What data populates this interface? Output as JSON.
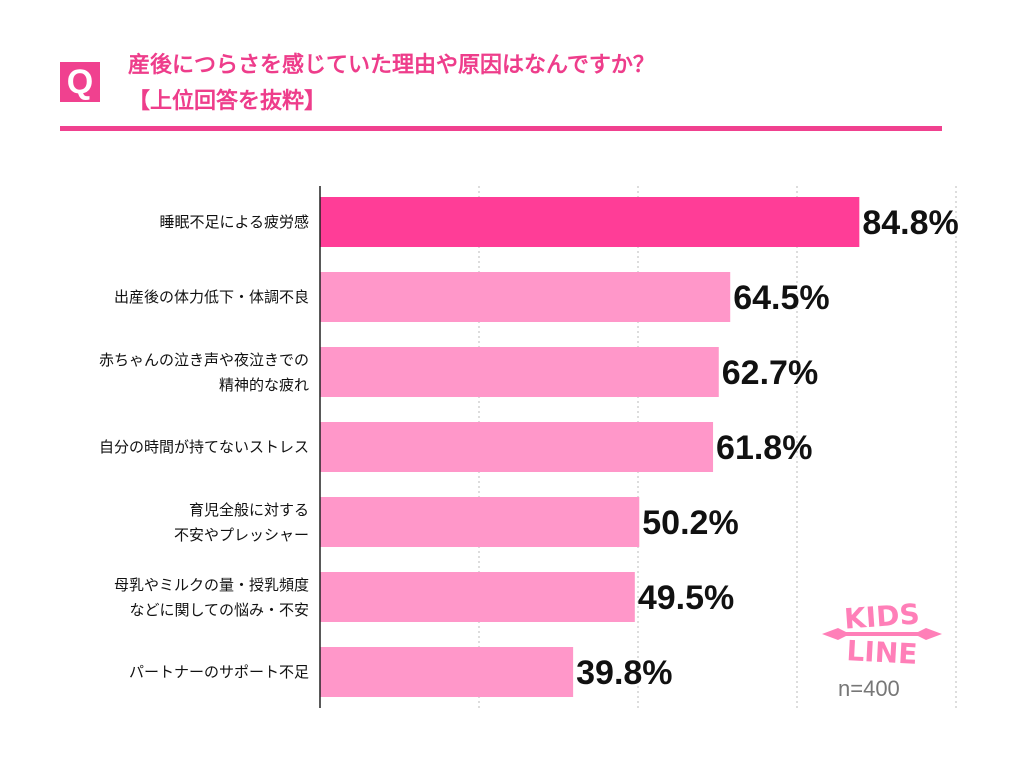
{
  "header": {
    "q_mark": "Q",
    "title_line1": "産後につらさを感じていた理由や原因はなんですか？",
    "title_line2": "【上位回答を抜粋】"
  },
  "chart_data": {
    "type": "bar",
    "orientation": "horizontal",
    "categories": [
      [
        "睡眠不足による疲労感"
      ],
      [
        "出産後の体力低下・体調不良"
      ],
      [
        "赤ちゃんの泣き声や夜泣きでの",
        "精神的な疲れ"
      ],
      [
        "自分の時間が持てないストレス"
      ],
      [
        "育児全般に対する",
        "不安やプレッシャー"
      ],
      [
        "母乳やミルクの量・授乳頻度",
        "などに関しての悩み・不安"
      ],
      [
        "パートナーのサポート不足"
      ]
    ],
    "values": [
      84.8,
      64.5,
      62.7,
      61.8,
      50.2,
      49.5,
      39.8
    ],
    "value_labels": [
      "84.8%",
      "64.5%",
      "62.7%",
      "61.8%",
      "50.2%",
      "49.5%",
      "39.8%"
    ],
    "xlim": [
      0,
      100
    ],
    "grid": true,
    "grid_style": "dotted vertical",
    "colors": {
      "highlight": "#ff3d97",
      "bar": "#ff97c9",
      "accent": "#f0418f"
    },
    "highlight_index": 0
  },
  "logo": {
    "line1": "KIDS",
    "line2": "LINE"
  },
  "sample_size": "n=400"
}
